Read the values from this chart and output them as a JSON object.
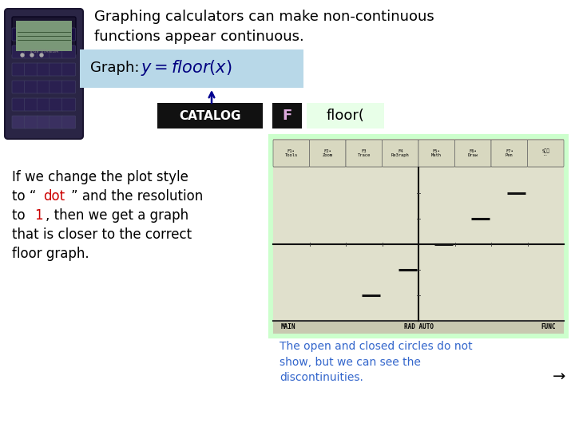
{
  "background_color": "#ffffff",
  "title_text": "Graphing calculators can make non-continuous\nfunctions appear continuous.",
  "title_color": "#000000",
  "title_fontsize": 13,
  "graph_label": "Graph:  ",
  "graph_box_color": "#b8d8e8",
  "catalog_box_color": "#111111",
  "catalog_text": "CATALOG",
  "catalog_text_color": "#ffffff",
  "f_box_color": "#111111",
  "f_text": "F",
  "f_text_color": "#ddaadd",
  "floor_box_color": "#e8ffe8",
  "floor_text": "floor(",
  "floor_text_color": "#000000",
  "arrow_color": "#00008b",
  "body_color": "#000000",
  "dot_color": "#cc0000",
  "one_color": "#cc0000",
  "caption_text": "The open and closed circles do not\nshow, but we can see the\ndiscontinuities.",
  "caption_color": "#3366cc",
  "calc_screen_border": "#ccffcc",
  "calc_screen_bg": "#e8e8d8",
  "toolbar_labels": [
    "F1•\nTools",
    "F2•\nZoom",
    "F3\nTrace",
    "F4\nRe3raph",
    "F5•\nMath",
    "F6•\nDraw",
    "F7•\nPen",
    "S：：\n··"
  ],
  "status_text_left": "MAIN",
  "status_text_mid": "RAD AUTO",
  "status_text_right": "FUNC",
  "arrow_right": "→"
}
